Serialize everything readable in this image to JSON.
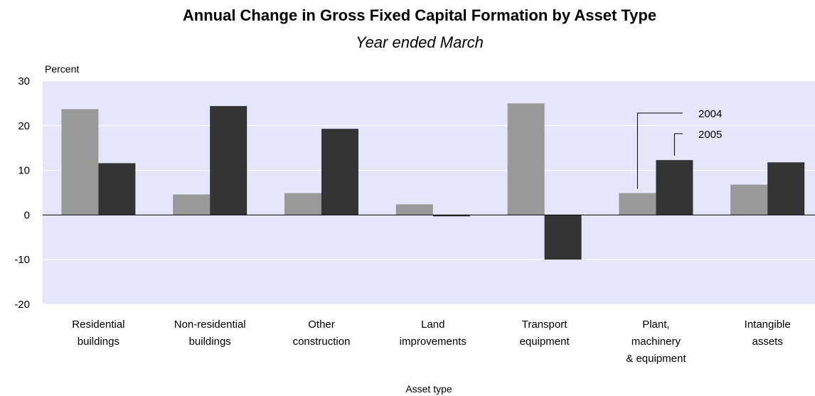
{
  "chart_data": {
    "type": "bar",
    "title": "Annual Change in Gross Fixed Capital Formation by Asset Type",
    "subtitle": "Year ended March",
    "y_axis_label": "Percent",
    "x_axis_label": "Asset type",
    "categories": [
      "Residential\nbuildings",
      "Non-residential\nbuildings",
      "Other\nconstruction",
      "Land\nimprovements",
      "Transport\nequipment",
      "Plant,\nmachinery\n& equipment",
      "Intangible\nassets"
    ],
    "series": [
      {
        "name": "2004",
        "color": "#999999",
        "values": [
          23.7,
          4.6,
          4.9,
          2.4,
          25.0,
          4.9,
          6.8
        ]
      },
      {
        "name": "2005",
        "color": "#333333",
        "values": [
          11.6,
          24.4,
          19.3,
          -0.3,
          -10.0,
          12.3,
          11.8
        ]
      }
    ],
    "ylim": [
      -20,
      30
    ],
    "yticks": [
      -20,
      -10,
      0,
      10,
      20,
      30
    ],
    "grid": true
  }
}
